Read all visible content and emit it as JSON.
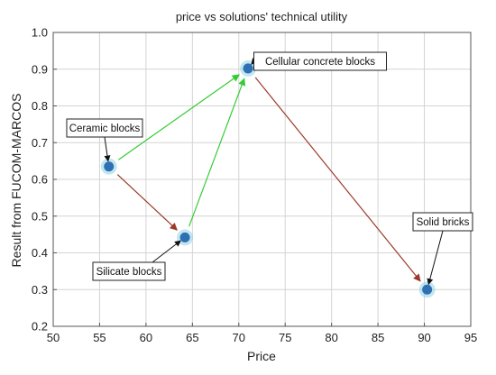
{
  "chart_data": {
    "type": "scatter",
    "title": "price vs solutions' technical utility",
    "xlabel": "Price",
    "ylabel": "Result from FUCOM-MARCOS",
    "xlim": [
      50,
      95
    ],
    "ylim": [
      0.2,
      1.0
    ],
    "xticks": [
      50,
      55,
      60,
      65,
      70,
      75,
      80,
      85,
      90,
      95
    ],
    "yticks": [
      0.2,
      0.3,
      0.4,
      0.5,
      0.6,
      0.7,
      0.8,
      0.9,
      1.0
    ],
    "xtick_labels": [
      "50",
      "55",
      "60",
      "65",
      "70",
      "75",
      "80",
      "85",
      "90",
      "95"
    ],
    "ytick_labels": [
      "0.2",
      "0.3",
      "0.4",
      "0.5",
      "0.6",
      "0.7",
      "0.8",
      "0.9",
      "1.0"
    ],
    "grid": true,
    "marker_color": "#2f6fb3",
    "points": [
      {
        "label": "Ceramic blocks",
        "x": 56.0,
        "y": 0.635
      },
      {
        "label": "Silicate blocks",
        "x": 64.2,
        "y": 0.442
      },
      {
        "label": "Cellular concrete blocks",
        "x": 71.0,
        "y": 0.902
      },
      {
        "label": "Solid bricks",
        "x": 90.3,
        "y": 0.3
      }
    ],
    "arrows": [
      {
        "from": "Ceramic blocks",
        "to": "Cellular concrete blocks",
        "color": "#33cc33"
      },
      {
        "from": "Ceramic blocks",
        "to": "Silicate blocks",
        "color": "#9b3a2a"
      },
      {
        "from": "Silicate blocks",
        "to": "Cellular concrete blocks",
        "color": "#33cc33"
      },
      {
        "from": "Cellular concrete blocks",
        "to": "Solid bricks",
        "color": "#9b3a2a"
      }
    ]
  }
}
